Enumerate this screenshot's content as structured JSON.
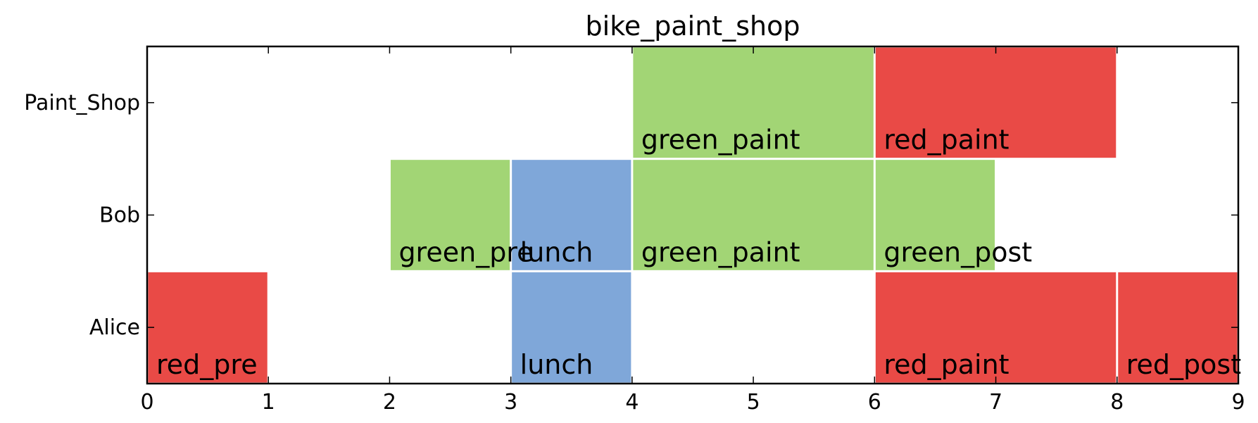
{
  "chart_data": {
    "type": "gantt",
    "title": "bike_paint_shop",
    "xlabel": "",
    "ylabel": "",
    "xlim": [
      0,
      9
    ],
    "xticks": [
      "0",
      "1",
      "2",
      "3",
      "4",
      "5",
      "6",
      "7",
      "8",
      "9"
    ],
    "rows": [
      "Paint_Shop",
      "Bob",
      "Alice"
    ],
    "colors": {
      "red": "#e94a46",
      "green": "#a2d575",
      "blue": "#7fa7d9"
    },
    "tasks": [
      {
        "row": "Paint_Shop",
        "start": 4,
        "end": 6,
        "label": "green_paint",
        "color": "green"
      },
      {
        "row": "Paint_Shop",
        "start": 6,
        "end": 8,
        "label": "red_paint",
        "color": "red"
      },
      {
        "row": "Bob",
        "start": 2,
        "end": 3,
        "label": "green_pre",
        "color": "green"
      },
      {
        "row": "Bob",
        "start": 3,
        "end": 4,
        "label": "lunch",
        "color": "blue"
      },
      {
        "row": "Bob",
        "start": 4,
        "end": 6,
        "label": "green_paint",
        "color": "green"
      },
      {
        "row": "Bob",
        "start": 6,
        "end": 7,
        "label": "green_post",
        "color": "green"
      },
      {
        "row": "Alice",
        "start": 0,
        "end": 1,
        "label": "red_pre",
        "color": "red"
      },
      {
        "row": "Alice",
        "start": 3,
        "end": 4,
        "label": "lunch",
        "color": "blue"
      },
      {
        "row": "Alice",
        "start": 6,
        "end": 8,
        "label": "red_paint",
        "color": "red"
      },
      {
        "row": "Alice",
        "start": 8,
        "end": 9,
        "label": "red_post",
        "color": "red"
      }
    ]
  }
}
